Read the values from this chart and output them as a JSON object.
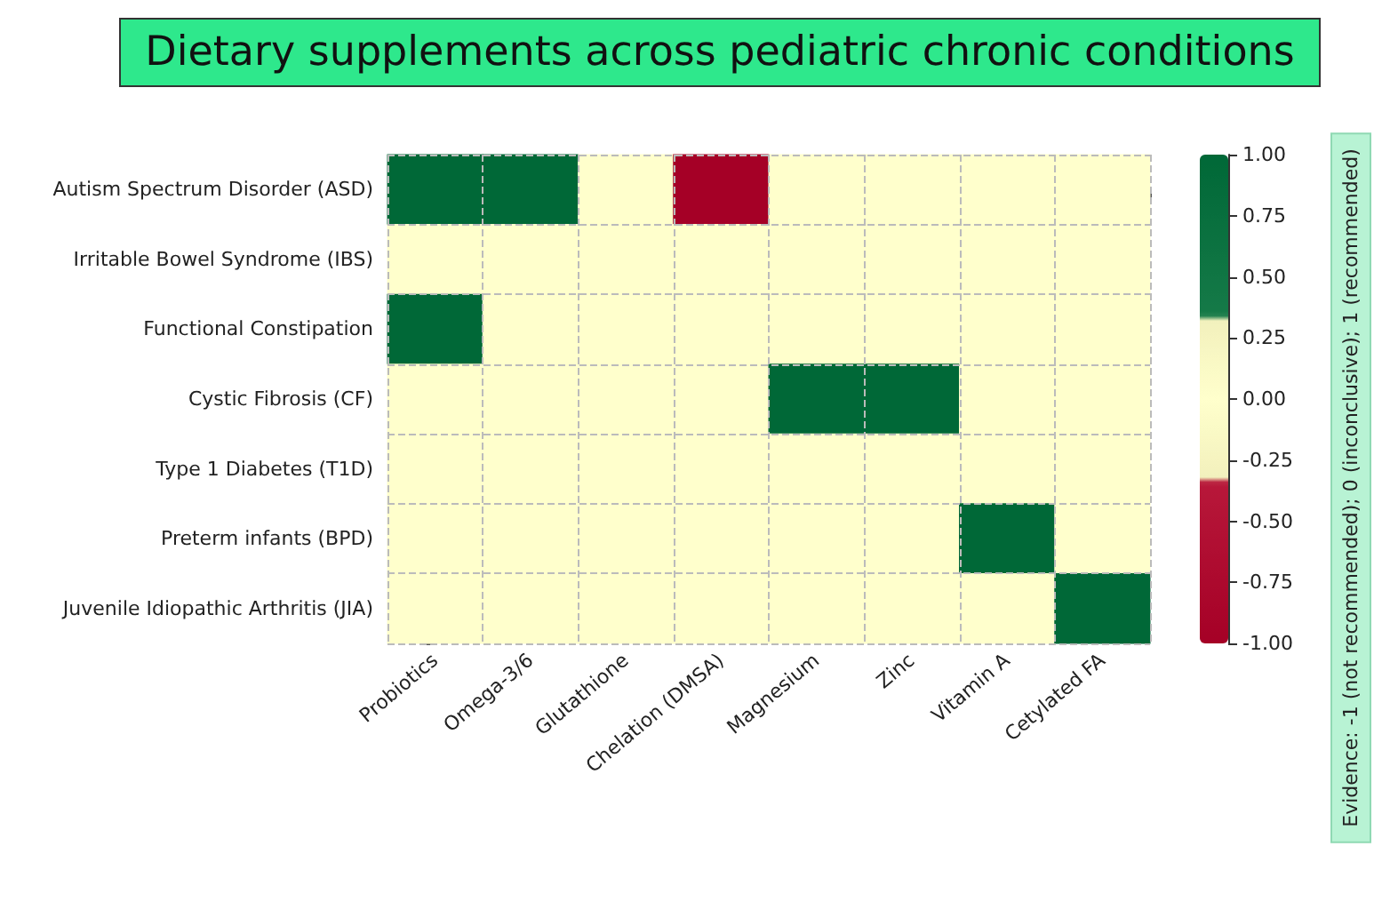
{
  "chart_data": {
    "type": "heatmap",
    "title": "Dietary supplements across pediatric chronic conditions",
    "categories": [
      "Probiotics",
      "Omega-3/6",
      "Glutathione",
      "Chelation (DMSA)",
      "Magnesium",
      "Zinc",
      "Vitamin A",
      "Cetylated FA"
    ],
    "y_categories": [
      "Autism Spectrum Disorder (ASD)",
      "Irritable Bowel Syndrome (IBS)",
      "Functional Constipation",
      "Cystic Fibrosis (CF)",
      "Type 1 Diabetes (T1D)",
      "Preterm infants (BPD)",
      "Juvenile Idiopathic Arthritis (JIA)"
    ],
    "cells": [
      [
        1,
        1,
        0,
        -1,
        0,
        0,
        0,
        0
      ],
      [
        0,
        0,
        0,
        0,
        0,
        0,
        0,
        0
      ],
      [
        1,
        0,
        0,
        0,
        0,
        0,
        0,
        0
      ],
      [
        0,
        0,
        0,
        0,
        1,
        1,
        0,
        0
      ],
      [
        0,
        0,
        0,
        0,
        0,
        0,
        0,
        0
      ],
      [
        0,
        0,
        0,
        0,
        0,
        0,
        1,
        0
      ],
      [
        0,
        0,
        0,
        0,
        0,
        0,
        0,
        1
      ]
    ],
    "clabel": "Evidence: -1 (not recommended); 0 (inconclusive); 1 (recommended)",
    "clim": [
      -1,
      1
    ],
    "cticks": [
      {
        "value": -1,
        "label": "-1.00"
      },
      {
        "value": -0.75,
        "label": "-0.75"
      },
      {
        "value": -0.5,
        "label": "-0.50"
      },
      {
        "value": -0.25,
        "label": "-0.25"
      },
      {
        "value": 0,
        "label": "0.00"
      },
      {
        "value": 0.25,
        "label": "0.25"
      },
      {
        "value": 0.5,
        "label": "0.50"
      },
      {
        "value": 0.75,
        "label": "0.75"
      },
      {
        "value": 1,
        "label": "1.00"
      }
    ],
    "grid": true
  }
}
